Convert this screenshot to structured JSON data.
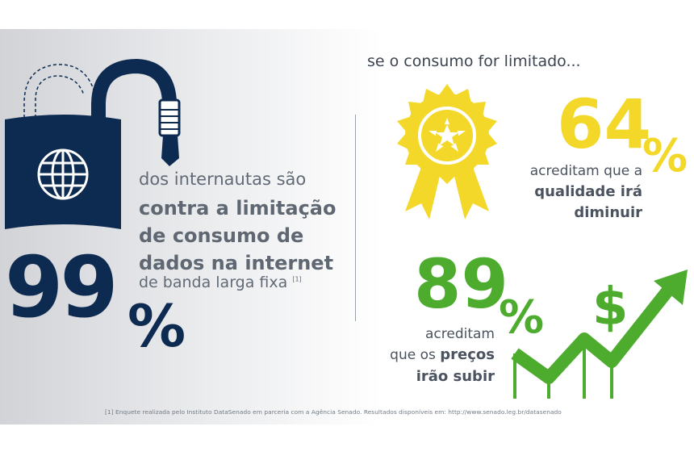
{
  "left": {
    "intro": "dos internautas são",
    "claim_line1": "contra a limitação",
    "claim_line2": "de consumo de",
    "claim_line3": "dados na internet",
    "tail": "de banda larga fixa",
    "tail_note": "[1]",
    "percent_number": "99",
    "percent_sign": "%"
  },
  "right": {
    "heading": "se o consumo for limitado...",
    "stat1": {
      "number": "64",
      "sign": "%",
      "line1": "acreditam que a",
      "line2": "qualidade irá",
      "line3": "diminuir"
    },
    "stat2": {
      "number": "89",
      "sign": "%",
      "line1": "acreditam",
      "line2_prefix": "que os ",
      "line2_bold": "preços",
      "line3": "irão subir",
      "dollar": "$"
    }
  },
  "footnote": "[1] Enquete realizada pelo Instituto DataSenado em parceria com a Agência Senado. Resultados disponíveis em: http://www.senado.leg.br/datasenado",
  "colors": {
    "navy": "#0d2b51",
    "yellow": "#f3d829",
    "green": "#4dab2e",
    "gray_text": "#5e6772"
  },
  "icons": [
    "lock-icon",
    "globe-icon",
    "ethernet-cable-icon",
    "award-ribbon-icon",
    "star-icon",
    "dollar-icon",
    "rising-arrow-icon"
  ]
}
